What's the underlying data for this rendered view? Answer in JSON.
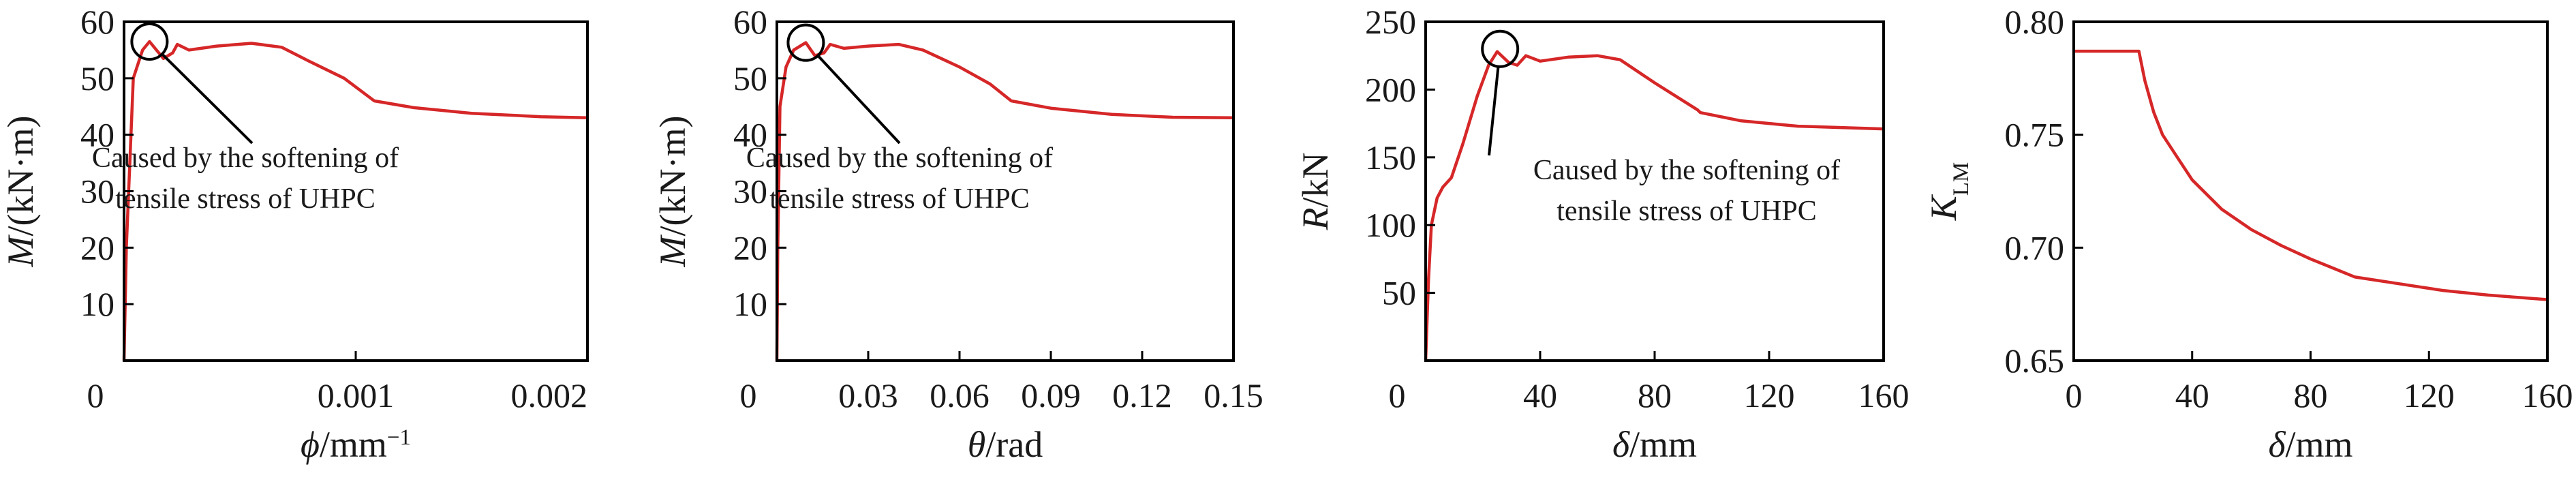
{
  "chart_data": [
    {
      "type": "line",
      "xlabel_parts": [
        {
          "t": "ϕ",
          "i": true
        },
        {
          "t": "/mm"
        },
        {
          "t": "−1",
          "sup": true
        }
      ],
      "ylabel_parts": [
        {
          "t": "M",
          "i": true
        },
        {
          "t": "/(kN·m)"
        }
      ],
      "xlim": [
        0,
        0.002
      ],
      "ylim": [
        0,
        60
      ],
      "xticks": [
        {
          "v": 0,
          "label": "0"
        },
        {
          "v": 0.001,
          "label": "0.001"
        },
        {
          "v": 0.002,
          "label": "0.002"
        }
      ],
      "yticks": [
        {
          "v": 10,
          "label": "10"
        },
        {
          "v": 20,
          "label": "20"
        },
        {
          "v": 30,
          "label": "30"
        },
        {
          "v": 40,
          "label": "40"
        },
        {
          "v": 50,
          "label": "50"
        },
        {
          "v": 60,
          "label": "60"
        }
      ],
      "series": [
        {
          "color": "#d62728",
          "points": [
            [
              0,
              0
            ],
            [
              1e-05,
              20
            ],
            [
              4e-05,
              50
            ],
            [
              8e-05,
              55
            ],
            [
              0.00011,
              56.5
            ],
            [
              0.00017,
              53.5
            ],
            [
              0.00021,
              54.5
            ],
            [
              0.00023,
              56
            ],
            [
              0.00028,
              55
            ],
            [
              0.0004,
              55.7
            ],
            [
              0.00055,
              56.2
            ],
            [
              0.00068,
              55.5
            ],
            [
              0.0008,
              53
            ],
            [
              0.00095,
              50
            ],
            [
              0.00108,
              46
            ],
            [
              0.00125,
              44.8
            ],
            [
              0.0015,
              43.8
            ],
            [
              0.0018,
              43.2
            ],
            [
              0.002,
              43
            ]
          ]
        }
      ],
      "annotation": {
        "lines": [
          "Caused by the softening of",
          "tensile stress of UHPC"
        ],
        "circle_at": [
          0.00011,
          56.5
        ]
      }
    },
    {
      "type": "line",
      "xlabel_parts": [
        {
          "t": "θ",
          "i": true
        },
        {
          "t": "/rad"
        }
      ],
      "ylabel_parts": [
        {
          "t": "M",
          "i": true
        },
        {
          "t": "/(kN·m)"
        }
      ],
      "xlim": [
        0,
        0.15
      ],
      "ylim": [
        0,
        60
      ],
      "xticks": [
        {
          "v": 0,
          "label": "0"
        },
        {
          "v": 0.03,
          "label": "0.03"
        },
        {
          "v": 0.06,
          "label": "0.06"
        },
        {
          "v": 0.09,
          "label": "0.09"
        },
        {
          "v": 0.12,
          "label": "0.12"
        },
        {
          "v": 0.15,
          "label": "0.15"
        }
      ],
      "yticks": [
        {
          "v": 10,
          "label": "10"
        },
        {
          "v": 20,
          "label": "20"
        },
        {
          "v": 30,
          "label": "30"
        },
        {
          "v": 40,
          "label": "40"
        },
        {
          "v": 50,
          "label": "50"
        },
        {
          "v": 60,
          "label": "60"
        }
      ],
      "series": [
        {
          "color": "#d62728",
          "points": [
            [
              0,
              0
            ],
            [
              0.0003,
              20
            ],
            [
              0.001,
              45
            ],
            [
              0.003,
              52
            ],
            [
              0.0055,
              55
            ],
            [
              0.0095,
              56.3
            ],
            [
              0.0125,
              54
            ],
            [
              0.0155,
              54.5
            ],
            [
              0.0175,
              56
            ],
            [
              0.022,
              55.3
            ],
            [
              0.03,
              55.7
            ],
            [
              0.04,
              56
            ],
            [
              0.048,
              55
            ],
            [
              0.06,
              52
            ],
            [
              0.07,
              49
            ],
            [
              0.077,
              46
            ],
            [
              0.09,
              44.7
            ],
            [
              0.11,
              43.6
            ],
            [
              0.13,
              43.1
            ],
            [
              0.15,
              43
            ]
          ]
        }
      ],
      "annotation": {
        "lines": [
          "Caused by the softening of",
          "tensile stress of UHPC"
        ],
        "circle_at": [
          0.0095,
          56.3
        ]
      }
    },
    {
      "type": "line",
      "xlabel_parts": [
        {
          "t": "δ",
          "i": true
        },
        {
          "t": "/mm"
        }
      ],
      "ylabel_parts": [
        {
          "t": "R",
          "i": true
        },
        {
          "t": "/kN"
        }
      ],
      "xlim": [
        0,
        160
      ],
      "ylim": [
        0,
        250
      ],
      "xticks": [
        {
          "v": 0,
          "label": "0"
        },
        {
          "v": 40,
          "label": "40"
        },
        {
          "v": 80,
          "label": "80"
        },
        {
          "v": 120,
          "label": "120"
        },
        {
          "v": 160,
          "label": "160"
        }
      ],
      "yticks": [
        {
          "v": 50,
          "label": "50"
        },
        {
          "v": 100,
          "label": "100"
        },
        {
          "v": 150,
          "label": "150"
        },
        {
          "v": 200,
          "label": "200"
        },
        {
          "v": 250,
          "label": "250"
        }
      ],
      "series": [
        {
          "color": "#d62728",
          "points": [
            [
              0,
              0
            ],
            [
              1,
              60
            ],
            [
              2,
              100
            ],
            [
              4,
              120
            ],
            [
              6,
              128
            ],
            [
              9,
              135
            ],
            [
              13,
              160
            ],
            [
              18,
              195
            ],
            [
              22,
              218
            ],
            [
              25,
              228
            ],
            [
              29,
              220
            ],
            [
              32,
              218
            ],
            [
              35,
              225
            ],
            [
              40,
              221
            ],
            [
              50,
              224
            ],
            [
              60,
              225
            ],
            [
              68,
              222
            ],
            [
              80,
              205
            ],
            [
              95,
              185
            ],
            [
              96,
              183
            ],
            [
              110,
              177
            ],
            [
              130,
              173
            ],
            [
              145,
              172
            ],
            [
              160,
              171
            ]
          ]
        }
      ],
      "annotation": {
        "lines": [
          "Caused by the softening of",
          "tensile stress of UHPC"
        ],
        "circle_at": [
          26,
          230
        ]
      }
    },
    {
      "type": "line",
      "xlabel_parts": [
        {
          "t": "δ",
          "i": true
        },
        {
          "t": "/mm"
        }
      ],
      "ylabel_parts": [
        {
          "t": "K",
          "i": true
        },
        {
          "t": "LM",
          "sub": true
        }
      ],
      "xlim": [
        0,
        160
      ],
      "ylim": [
        0.65,
        0.8
      ],
      "xticks": [
        {
          "v": 0,
          "label": "0"
        },
        {
          "v": 40,
          "label": "40"
        },
        {
          "v": 80,
          "label": "80"
        },
        {
          "v": 120,
          "label": "120"
        },
        {
          "v": 160,
          "label": "160"
        }
      ],
      "yticks": [
        {
          "v": 0.65,
          "label": "0.65"
        },
        {
          "v": 0.7,
          "label": "0.70"
        },
        {
          "v": 0.75,
          "label": "0.75"
        },
        {
          "v": 0.8,
          "label": "0.80"
        }
      ],
      "series": [
        {
          "color": "#d62728",
          "points": [
            [
              0,
              0.787
            ],
            [
              22,
              0.787
            ],
            [
              24,
              0.774
            ],
            [
              27,
              0.76
            ],
            [
              30,
              0.75
            ],
            [
              35,
              0.74
            ],
            [
              40,
              0.73
            ],
            [
              50,
              0.717
            ],
            [
              60,
              0.708
            ],
            [
              70,
              0.701
            ],
            [
              80,
              0.695
            ],
            [
              95,
              0.687
            ],
            [
              110,
              0.684
            ],
            [
              125,
              0.681
            ],
            [
              140,
              0.679
            ],
            [
              160,
              0.677
            ]
          ]
        }
      ],
      "annotation": null
    }
  ]
}
